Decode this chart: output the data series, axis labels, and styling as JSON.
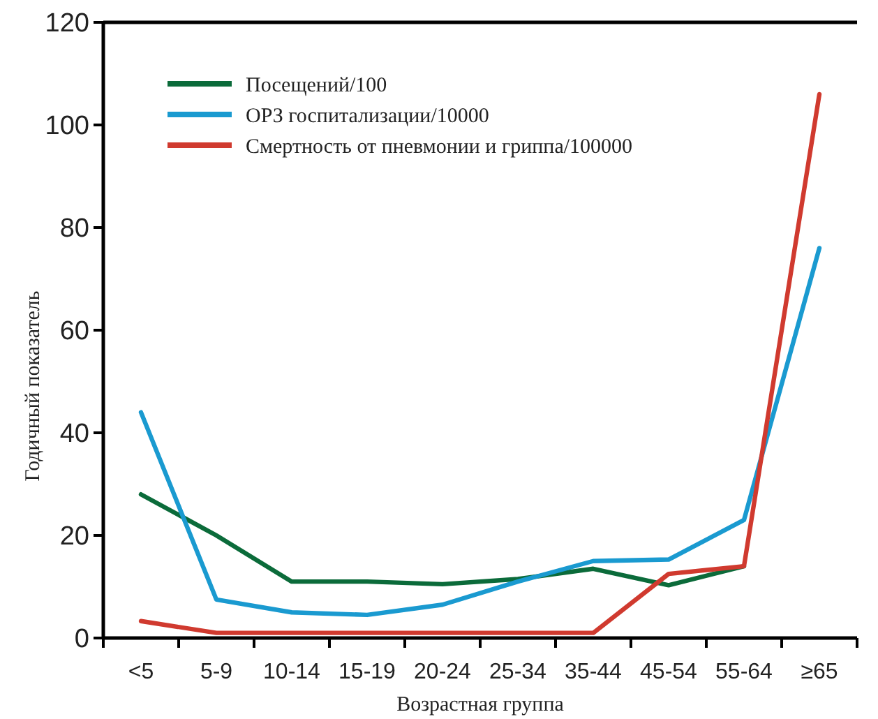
{
  "chart_data": {
    "type": "line",
    "xlabel": "Возрастная группа",
    "ylabel": "Годичный показатель",
    "categories": [
      "<5",
      "5-9",
      "10-14",
      "15-19",
      "20-24",
      "25-34",
      "35-44",
      "45-54",
      "55-64",
      "≥65"
    ],
    "series": [
      {
        "name": "Посещений/100",
        "color": "#0b6b3a",
        "values": [
          28,
          20,
          11,
          11,
          10.5,
          11.5,
          13.5,
          10.3,
          14,
          null
        ]
      },
      {
        "name": "ОРЗ госпитализации/10000",
        "color": "#1a9ad0",
        "values": [
          44,
          7.5,
          5,
          4.5,
          6.5,
          11,
          15,
          15.3,
          23,
          76
        ]
      },
      {
        "name": "Смертность от пневмонии и гриппа/100000",
        "color": "#d03a2f",
        "values": [
          3.3,
          1,
          1,
          1,
          1,
          1,
          1,
          12.5,
          14,
          106
        ]
      }
    ],
    "ylim": [
      0,
      120
    ],
    "yticks": [
      0,
      20,
      40,
      60,
      80,
      100,
      120
    ],
    "grid": false,
    "legend": "top left",
    "marker": "none",
    "line_style": "solid"
  }
}
